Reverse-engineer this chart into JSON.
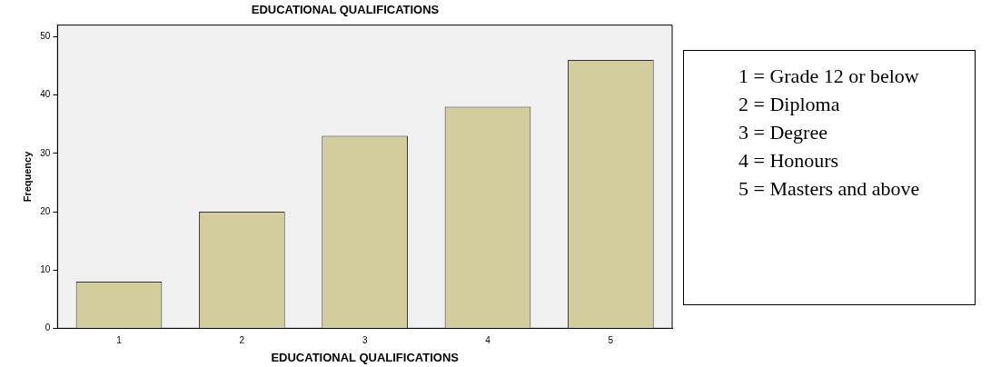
{
  "chart_data": {
    "type": "bar",
    "title": "EDUCATIONAL QUALIFICATIONS",
    "xlabel": "EDUCATIONAL QUALIFICATIONS",
    "ylabel": "Frequency",
    "categories": [
      "1",
      "2",
      "3",
      "4",
      "5"
    ],
    "values": [
      8,
      20,
      33,
      38,
      46
    ],
    "color": "#d3cc9c",
    "ylim": [
      0,
      52
    ],
    "yticks": [
      0,
      10,
      20,
      30,
      40,
      50
    ],
    "grid": false,
    "legend": false,
    "annotations": [
      "1 = Grade 12 or below",
      "2 = Diploma",
      "3 = Degree",
      "4 = Honours",
      "5 = Masters and above"
    ]
  }
}
